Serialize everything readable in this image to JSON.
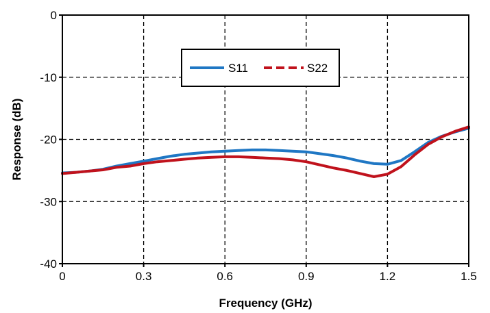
{
  "chart_data": {
    "type": "line",
    "title": "",
    "xlabel": "Frequency (GHz)",
    "ylabel": "Response (dB)",
    "xlim": [
      0,
      1.5
    ],
    "ylim": [
      -40,
      0
    ],
    "x_ticks": [
      0,
      0.3,
      0.6,
      0.9,
      1.2,
      1.5
    ],
    "x_tick_labels": [
      "0",
      "0.3",
      "0.6",
      "0.9",
      "1.2",
      "1.5"
    ],
    "y_ticks": [
      0,
      -10,
      -20,
      -30,
      -40
    ],
    "y_tick_labels": [
      "0",
      "-10",
      "-20",
      "-30",
      "-40"
    ],
    "grid": true,
    "legend_position": "top-center",
    "series": [
      {
        "name": "S11",
        "color": "#1f77c4",
        "line_style": "solid",
        "x": [
          0,
          0.05,
          0.1,
          0.15,
          0.2,
          0.25,
          0.3,
          0.35,
          0.4,
          0.45,
          0.5,
          0.55,
          0.6,
          0.65,
          0.7,
          0.75,
          0.8,
          0.85,
          0.9,
          0.95,
          1.0,
          1.05,
          1.1,
          1.15,
          1.2,
          1.25,
          1.3,
          1.35,
          1.4,
          1.45,
          1.5
        ],
        "y": [
          -25.4,
          -25.3,
          -25.1,
          -24.8,
          -24.3,
          -23.9,
          -23.5,
          -23.1,
          -22.7,
          -22.4,
          -22.2,
          -22.0,
          -21.9,
          -21.8,
          -21.7,
          -21.7,
          -21.8,
          -21.9,
          -22.0,
          -22.3,
          -22.6,
          -23.0,
          -23.5,
          -23.9,
          -24.0,
          -23.4,
          -22.0,
          -20.5,
          -19.5,
          -18.8,
          -18.2
        ]
      },
      {
        "name": "S22",
        "color": "#c0121c",
        "line_style": "solid",
        "x": [
          0,
          0.05,
          0.1,
          0.15,
          0.2,
          0.25,
          0.3,
          0.35,
          0.4,
          0.45,
          0.5,
          0.55,
          0.6,
          0.65,
          0.7,
          0.75,
          0.8,
          0.85,
          0.9,
          0.95,
          1.0,
          1.05,
          1.1,
          1.15,
          1.2,
          1.25,
          1.3,
          1.35,
          1.4,
          1.45,
          1.5
        ],
        "y": [
          -25.5,
          -25.3,
          -25.1,
          -24.9,
          -24.5,
          -24.3,
          -23.9,
          -23.6,
          -23.4,
          -23.2,
          -23.0,
          -22.9,
          -22.8,
          -22.8,
          -22.9,
          -23.0,
          -23.1,
          -23.3,
          -23.6,
          -24.1,
          -24.6,
          -25.0,
          -25.5,
          -26.0,
          -25.6,
          -24.4,
          -22.5,
          -20.8,
          -19.6,
          -18.7,
          -18.0
        ]
      }
    ],
    "legend": {
      "s11_label": "S11",
      "s22_label": "S22"
    }
  }
}
